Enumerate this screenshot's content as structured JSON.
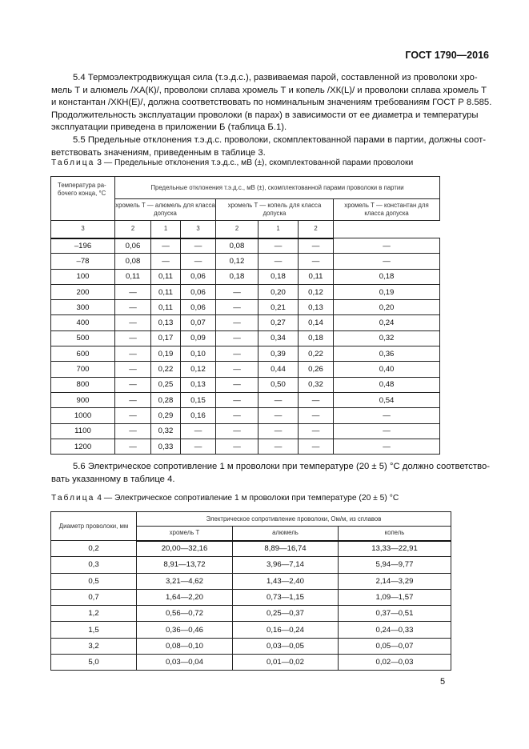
{
  "header": {
    "standard": "ГОСТ 1790—2016"
  },
  "para_5_4": [
    "5.4 Термоэлектродвижущая сила (т.э.д.с.), развиваемая парой, составленной из проволоки хро-",
    "мель Т и алюмель /ХА(К)/, проволоки сплава хромель Т и копель /ХК(L)/ и проволоки сплава хромель Т",
    "и константан /ХКН(Е)/, должна соответствовать по номинальным значениям требованиям ГОСТ Р 8.585.",
    "Продолжительность эксплуатации проволоки (в парах) в зависимости от ее диаметра и температуры",
    "эксплуатации приведена в приложении Б (таблица Б.1)."
  ],
  "para_5_5": [
    "5.5 Предельные отклонения т.э.д.с. проволоки, скомплектованной парами в партии, должны соот-",
    "ветствовать значениям, приведенным в таблице 3."
  ],
  "table3": {
    "caption_label": "Таблица",
    "caption_text": " 3 — Предельные отклонения т.э.д.с., мВ (±), скомплектованной парами проволоки",
    "col_temp": "Температура ра-бочего конца, °С",
    "col_group": "Предельные отклонения т.э.д.с., мВ (±), скомплектованной парами проволоки в партии",
    "pairs": [
      "хромель Т — алюмель для класса допуска",
      "хромель Т — копель для класса допуска",
      "хромель Т — константан для класса допуска"
    ],
    "classes": [
      "3",
      "2",
      "1",
      "3",
      "2",
      "1",
      "2"
    ],
    "rows": [
      [
        "–196",
        "0,06",
        "—",
        "—",
        "0,08",
        "—",
        "—",
        "—"
      ],
      [
        "–78",
        "0,08",
        "—",
        "—",
        "0,12",
        "—",
        "—",
        "—"
      ],
      [
        "100",
        "0,11",
        "0,11",
        "0,06",
        "0,18",
        "0,18",
        "0,11",
        "0,18"
      ],
      [
        "200",
        "—",
        "0,11",
        "0,06",
        "—",
        "0,20",
        "0,12",
        "0,19"
      ],
      [
        "300",
        "—",
        "0,11",
        "0,06",
        "—",
        "0,21",
        "0,13",
        "0,20"
      ],
      [
        "400",
        "—",
        "0,13",
        "0,07",
        "—",
        "0,27",
        "0,14",
        "0,24"
      ],
      [
        "500",
        "—",
        "0,17",
        "0,09",
        "—",
        "0,34",
        "0,18",
        "0,32"
      ],
      [
        "600",
        "—",
        "0,19",
        "0,10",
        "—",
        "0,39",
        "0,22",
        "0,36"
      ],
      [
        "700",
        "—",
        "0,22",
        "0,12",
        "—",
        "0,44",
        "0,26",
        "0,40"
      ],
      [
        "800",
        "—",
        "0,25",
        "0,13",
        "—",
        "0,50",
        "0,32",
        "0,48"
      ],
      [
        "900",
        "—",
        "0,28",
        "0,15",
        "—",
        "—",
        "—",
        "0,54"
      ],
      [
        "1000",
        "—",
        "0,29",
        "0,16",
        "—",
        "—",
        "—",
        "—"
      ],
      [
        "1100",
        "—",
        "0,32",
        "—",
        "—",
        "—",
        "—",
        "—"
      ],
      [
        "1200",
        "—",
        "0,33",
        "—",
        "—",
        "—",
        "—",
        "—"
      ]
    ]
  },
  "para_5_6": [
    "5.6 Электрическое сопротивление 1 м проволоки при температуре (20 ± 5) °С должно соответство-",
    "вать указанному в таблице 4."
  ],
  "table4": {
    "caption_label": "Таблица",
    "caption_text": " 4 — Электрическое сопротивление 1 м проволоки при температуре (20 ± 5) °С",
    "col_diam": "Диаметр проволоки, мм",
    "col_group": "Электрическое сопротивление проволоки, Ом/м, из сплавов",
    "alloys": [
      "хромель Т",
      "алюмель",
      "копель"
    ],
    "rows": [
      [
        "0,2",
        "20,00—32,16",
        "8,89—16,74",
        "13,33—22,91"
      ],
      [
        "0,3",
        "8,91—13,72",
        "3,96—7,14",
        "5,94—9,77"
      ],
      [
        "0,5",
        "3,21—4,62",
        "1,43—2,40",
        "2,14—3,29"
      ],
      [
        "0,7",
        "1,64—2,20",
        "0,73—1,15",
        "1,09—1,57"
      ],
      [
        "1,2",
        "0,56—0,72",
        "0,25—0,37",
        "0,37—0,51"
      ],
      [
        "1,5",
        "0,36—0,46",
        "0,16—0,24",
        "0,24—0,33"
      ],
      [
        "3,2",
        "0,08—0,10",
        "0,03—0,05",
        "0,05—0,07"
      ],
      [
        "5,0",
        "0,03—0,04",
        "0,01—0,02",
        "0,02—0,03"
      ]
    ]
  },
  "page_number": "5"
}
